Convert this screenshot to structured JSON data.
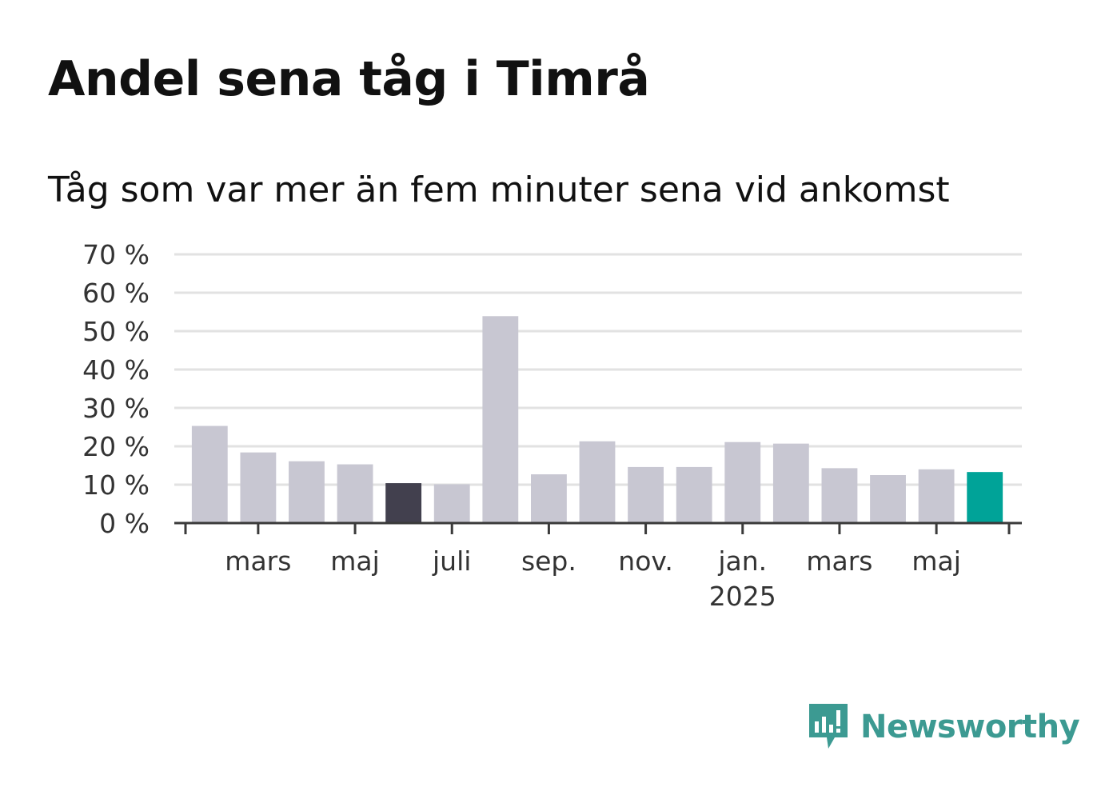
{
  "title": "Andel sena tåg i Timrå",
  "subtitle": "Tåg som var mer än fem minuter sena vid ankomst",
  "brand": {
    "name": "Newsworthy",
    "icon": "newsworthy-logo-icon",
    "color": "#3c9a92"
  },
  "chart_data": {
    "type": "bar",
    "categories": [
      "2024-02",
      "2024-03",
      "2024-04",
      "2024-05",
      "2024-06",
      "2024-07",
      "2024-08",
      "2024-09",
      "2024-10",
      "2024-11",
      "2024-12",
      "2025-01",
      "2025-02",
      "2025-03",
      "2025-04",
      "2025-05",
      "2025-06"
    ],
    "values": [
      25.3,
      18.4,
      16.1,
      15.3,
      10.4,
      10.1,
      53.9,
      12.7,
      21.3,
      14.6,
      14.6,
      21.1,
      20.7,
      14.3,
      12.5,
      14.0,
      13.3
    ],
    "highlight": {
      "index": 4,
      "color": "#42404e"
    },
    "latest": {
      "index": 16,
      "color": "#00a398"
    },
    "bar_color": "#c8c7d2",
    "ylim": [
      0,
      70
    ],
    "yticks": [
      {
        "value": 0,
        "label": "0 %"
      },
      {
        "value": 10,
        "label": "10 %"
      },
      {
        "value": 20,
        "label": "20 %"
      },
      {
        "value": 30,
        "label": "30 %"
      },
      {
        "value": 40,
        "label": "40 %"
      },
      {
        "value": 50,
        "label": "50 %"
      },
      {
        "value": 60,
        "label": "60 %"
      },
      {
        "value": 70,
        "label": "70 %"
      }
    ],
    "xticks": [
      {
        "index": 1,
        "label": "mars"
      },
      {
        "index": 3,
        "label": "maj"
      },
      {
        "index": 5,
        "label": "juli"
      },
      {
        "index": 7,
        "label": "sep."
      },
      {
        "index": 9,
        "label": "nov."
      },
      {
        "index": 11,
        "label": "jan.",
        "sublabel": "2025"
      },
      {
        "index": 13,
        "label": "mars"
      },
      {
        "index": 15,
        "label": "maj"
      }
    ],
    "grid": true,
    "grid_color": "#e2e2e2",
    "axis_color": "#3a3a3a"
  }
}
